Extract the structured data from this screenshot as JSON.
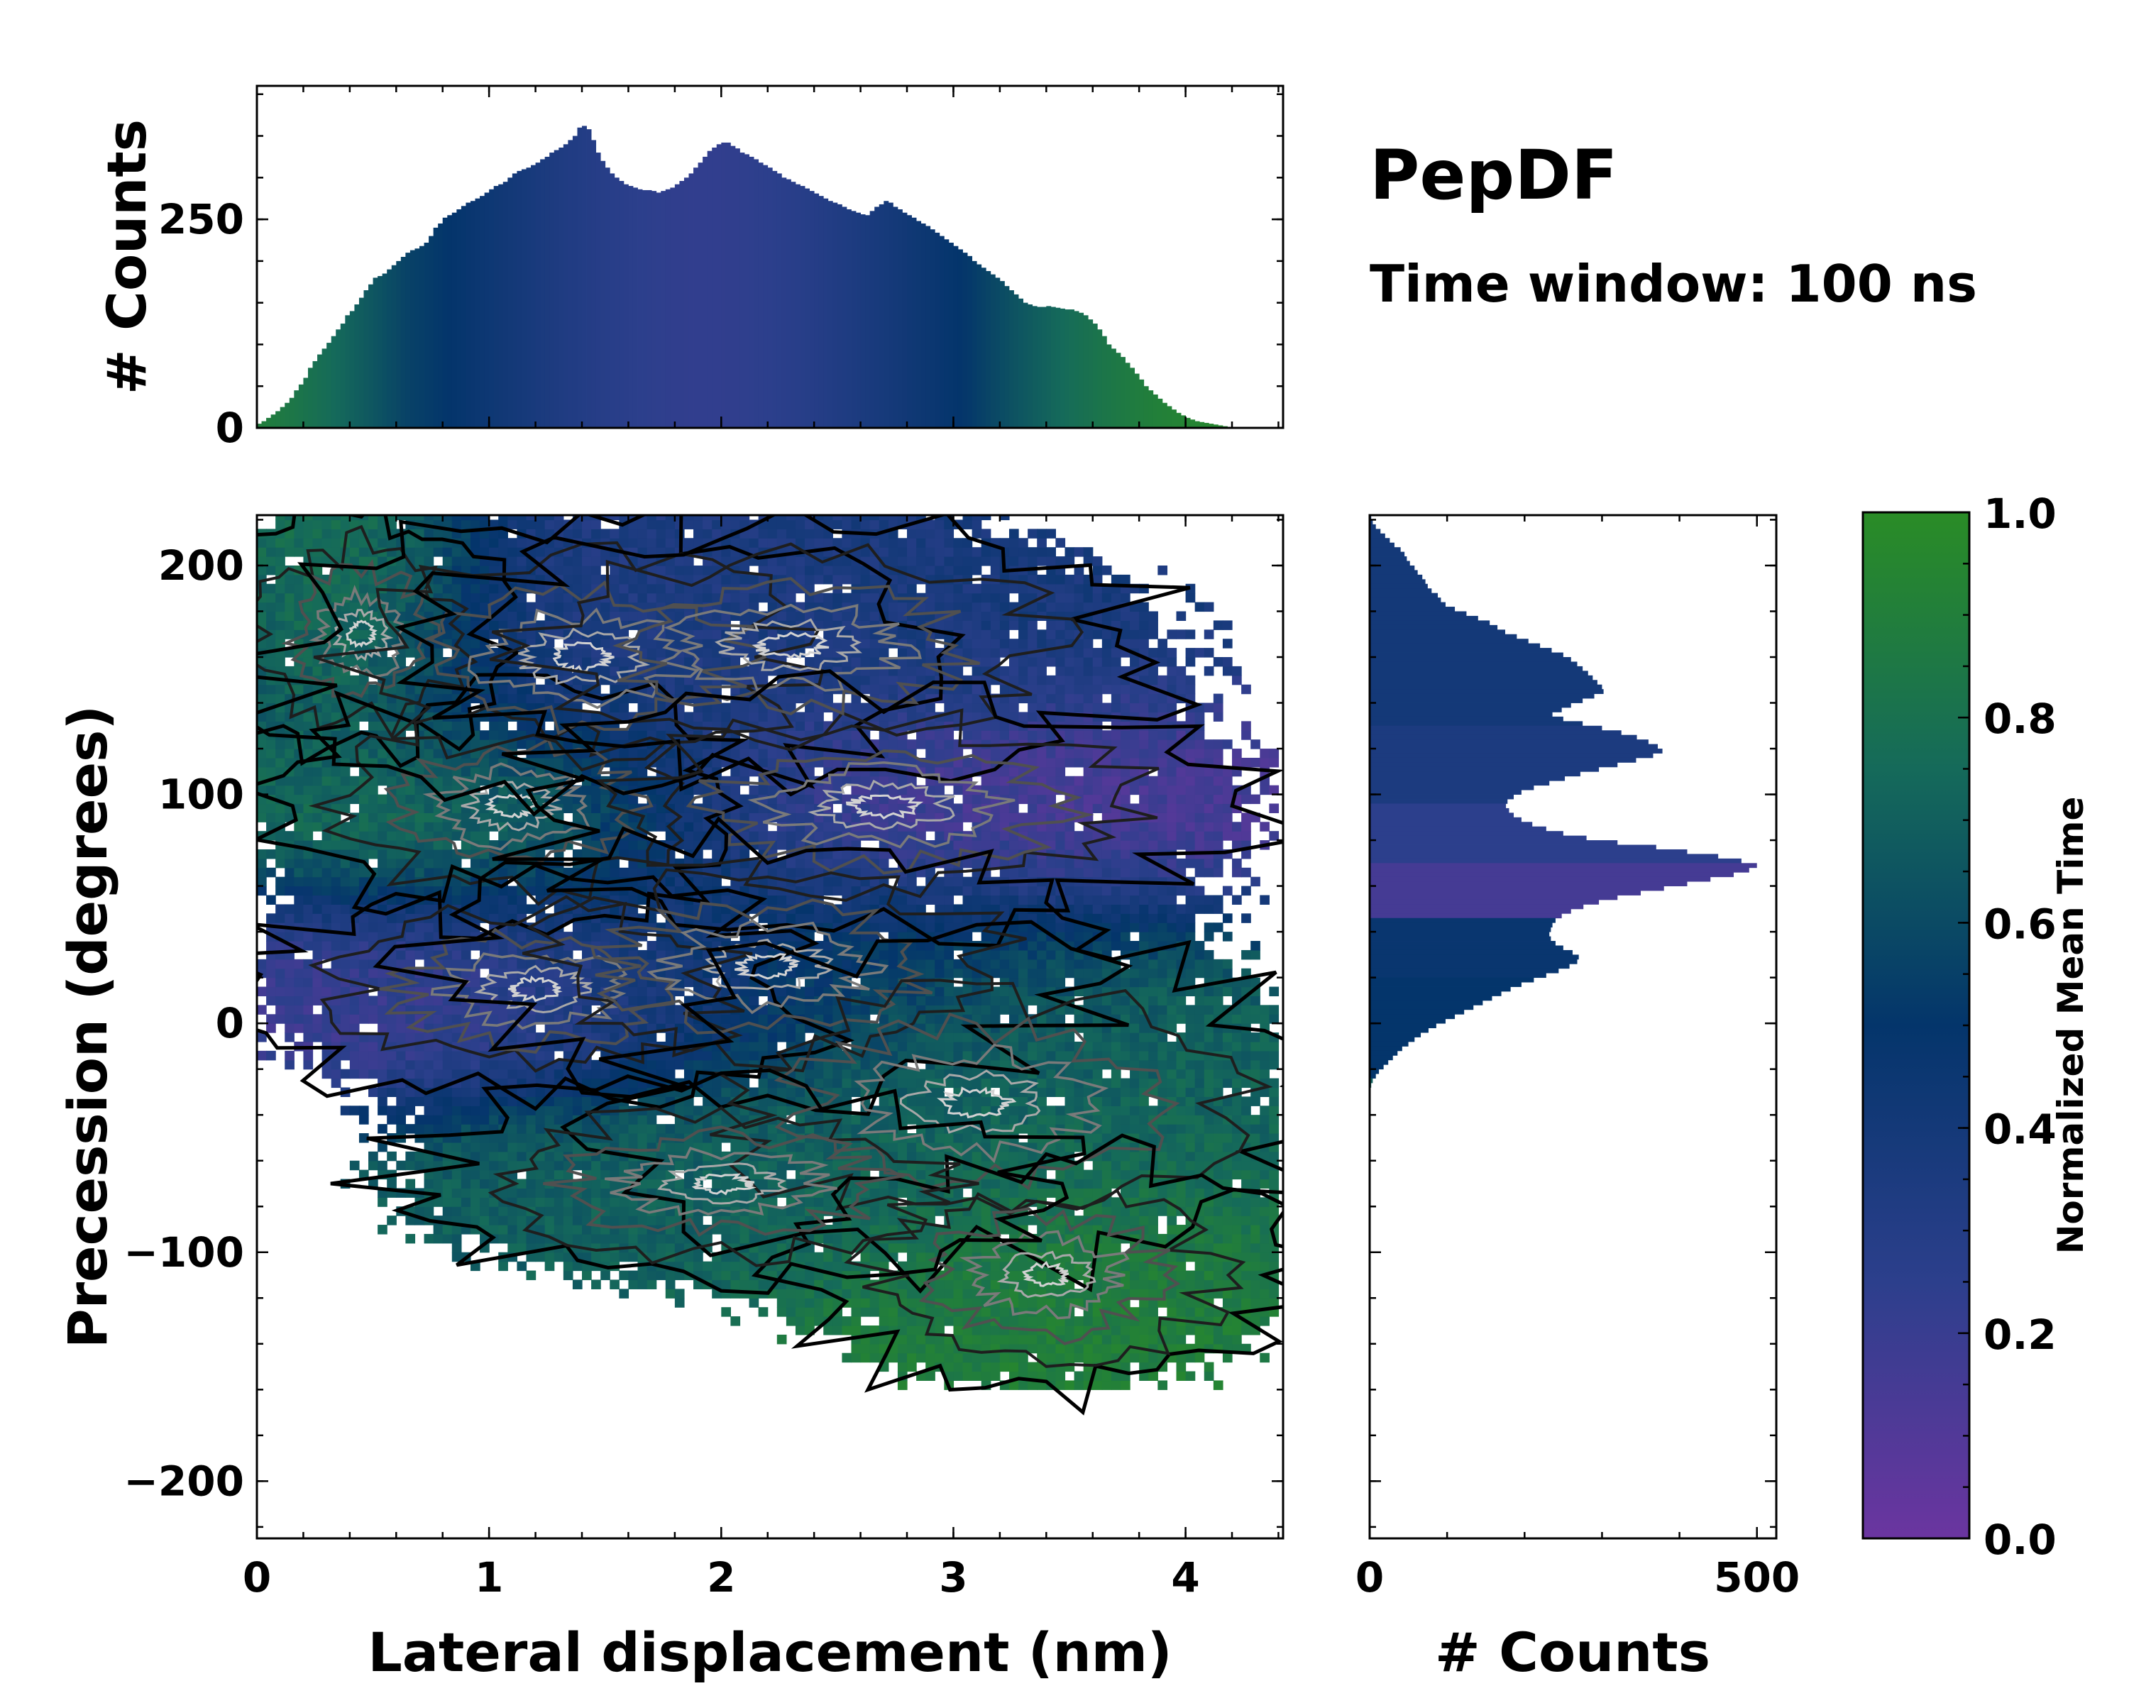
{
  "figure": {
    "title": "PepDF",
    "subtitle": "Time window: 100 ns"
  },
  "colors": {
    "cmap_low": "#6b35a0",
    "cmap_mid_low": "#2c3f8c",
    "cmap_mid": "#04356b",
    "cmap_mid_high": "#156a5a",
    "cmap_high": "#2a8c26",
    "contour_outer": "#000000",
    "contour_inner": "#c8c8c8"
  },
  "chart_data": [
    {
      "id": "main",
      "type": "heatmap",
      "xlabel": "Lateral displacement (nm)",
      "ylabel": "Precession (degrees)",
      "xlim": [
        0,
        4.42
      ],
      "ylim": [
        -225,
        222
      ],
      "xticks": [
        0,
        1,
        2,
        3,
        4
      ],
      "xtick_labels": [
        "0",
        "1",
        "2",
        "3",
        "4"
      ],
      "yticks": [
        -200,
        -100,
        0,
        100,
        200
      ],
      "ytick_labels": [
        "−200",
        "−100",
        "0",
        "100",
        "200"
      ],
      "clusters": [
        {
          "cx": 0.45,
          "cy": 170,
          "sx": 0.35,
          "sy": 32,
          "color_value": 0.95
        },
        {
          "cx": 1.1,
          "cy": 95,
          "sx": 0.6,
          "sy": 30,
          "color_value": 0.85
        },
        {
          "cx": 1.4,
          "cy": 160,
          "sx": 0.8,
          "sy": 35,
          "color_value": 0.3
        },
        {
          "cx": 2.3,
          "cy": 165,
          "sx": 0.9,
          "sy": 32,
          "color_value": 0.38
        },
        {
          "cx": 2.7,
          "cy": 95,
          "sx": 0.9,
          "sy": 30,
          "color_value": 0.12
        },
        {
          "cx": 1.2,
          "cy": 15,
          "sx": 0.7,
          "sy": 28,
          "color_value": 0.15
        },
        {
          "cx": 2.2,
          "cy": 25,
          "sx": 0.8,
          "sy": 32,
          "color_value": 0.55
        },
        {
          "cx": 3.1,
          "cy": -35,
          "sx": 0.9,
          "sy": 40,
          "color_value": 0.72
        },
        {
          "cx": 3.4,
          "cy": -110,
          "sx": 0.6,
          "sy": 30,
          "color_value": 0.9
        },
        {
          "cx": 2.0,
          "cy": -70,
          "sx": 0.8,
          "sy": 25,
          "color_value": 0.7
        }
      ]
    },
    {
      "id": "top_histogram",
      "type": "bar",
      "ylabel": "# Counts",
      "xlim": [
        0,
        4.42
      ],
      "ylim": [
        0,
        410
      ],
      "yticks": [
        0,
        250
      ],
      "ytick_labels": [
        "0",
        "250"
      ],
      "bin_start": 0,
      "bin_width": 0.02,
      "values": [
        5,
        8,
        12,
        16,
        20,
        25,
        30,
        36,
        45,
        52,
        60,
        72,
        80,
        88,
        95,
        102,
        110,
        118,
        125,
        135,
        140,
        148,
        156,
        165,
        172,
        180,
        182,
        185,
        190,
        195,
        200,
        205,
        210,
        213,
        215,
        218,
        222,
        230,
        240,
        245,
        252,
        255,
        258,
        262,
        266,
        270,
        272,
        275,
        278,
        282,
        286,
        290,
        292,
        295,
        300,
        305,
        308,
        310,
        312,
        315,
        318,
        322,
        325,
        330,
        333,
        336,
        340,
        345,
        350,
        360,
        362,
        358,
        345,
        330,
        320,
        312,
        305,
        300,
        296,
        292,
        290,
        288,
        286,
        285,
        285,
        284,
        282,
        284,
        286,
        288,
        292,
        296,
        300,
        305,
        312,
        318,
        325,
        332,
        336,
        340,
        342,
        342,
        338,
        335,
        330,
        328,
        325,
        322,
        318,
        315,
        312,
        308,
        305,
        300,
        298,
        295,
        292,
        290,
        287,
        284,
        281,
        278,
        275,
        272,
        270,
        268,
        265,
        262,
        260,
        258,
        256,
        255,
        260,
        265,
        268,
        272,
        270,
        265,
        262,
        258,
        255,
        252,
        248,
        245,
        242,
        238,
        234,
        230,
        226,
        222,
        218,
        214,
        210,
        206,
        200,
        196,
        192,
        188,
        184,
        180,
        176,
        170,
        165,
        160,
        155,
        150,
        148,
        146,
        145,
        145,
        146,
        145,
        144,
        143,
        142,
        142,
        140,
        138,
        135,
        130,
        125,
        118,
        110,
        100,
        95,
        90,
        85,
        78,
        72,
        65,
        58,
        50,
        45,
        40,
        35,
        30,
        26,
        22,
        18,
        15,
        12,
        10,
        8,
        7,
        6,
        5,
        4,
        3,
        2,
        1,
        1
      ]
    },
    {
      "id": "right_histogram",
      "type": "bar",
      "orientation": "horizontal",
      "xlabel": "# Counts",
      "xlim": [
        0,
        525
      ],
      "ylim": [
        -225,
        222
      ],
      "xticks": [
        0,
        500
      ],
      "xtick_labels": [
        "0",
        "500"
      ],
      "bin_start": 222,
      "bin_width": 2,
      "values": [
        2,
        4,
        8,
        14,
        20,
        26,
        32,
        40,
        45,
        48,
        52,
        58,
        62,
        68,
        72,
        75,
        80,
        88,
        92,
        98,
        110,
        125,
        140,
        155,
        165,
        175,
        190,
        205,
        220,
        235,
        250,
        260,
        268,
        275,
        282,
        288,
        294,
        300,
        302,
        290,
        275,
        260,
        248,
        236,
        250,
        275,
        300,
        325,
        345,
        360,
        372,
        378,
        366,
        344,
        320,
        296,
        272,
        252,
        232,
        212,
        196,
        186,
        178,
        176,
        180,
        186,
        196,
        210,
        228,
        250,
        280,
        320,
        370,
        410,
        450,
        480,
        500,
        490,
        470,
        440,
        410,
        380,
        350,
        320,
        296,
        276,
        260,
        248,
        240,
        236,
        234,
        232,
        234,
        240,
        250,
        262,
        270,
        268,
        258,
        244,
        228,
        212,
        196,
        182,
        170,
        158,
        146,
        134,
        122,
        110,
        98,
        86,
        76,
        66,
        58,
        50,
        42,
        36,
        30,
        24,
        18,
        12,
        8,
        4,
        2,
        1
      ]
    },
    {
      "id": "colorbar",
      "type": "colorbar",
      "label": "Normalized Mean Time",
      "range": [
        0.0,
        1.0
      ],
      "ticks": [
        0.0,
        0.2,
        0.4,
        0.6,
        0.8,
        1.0
      ],
      "tick_labels": [
        "0.0",
        "0.2",
        "0.4",
        "0.6",
        "0.8",
        "1.0"
      ]
    }
  ]
}
